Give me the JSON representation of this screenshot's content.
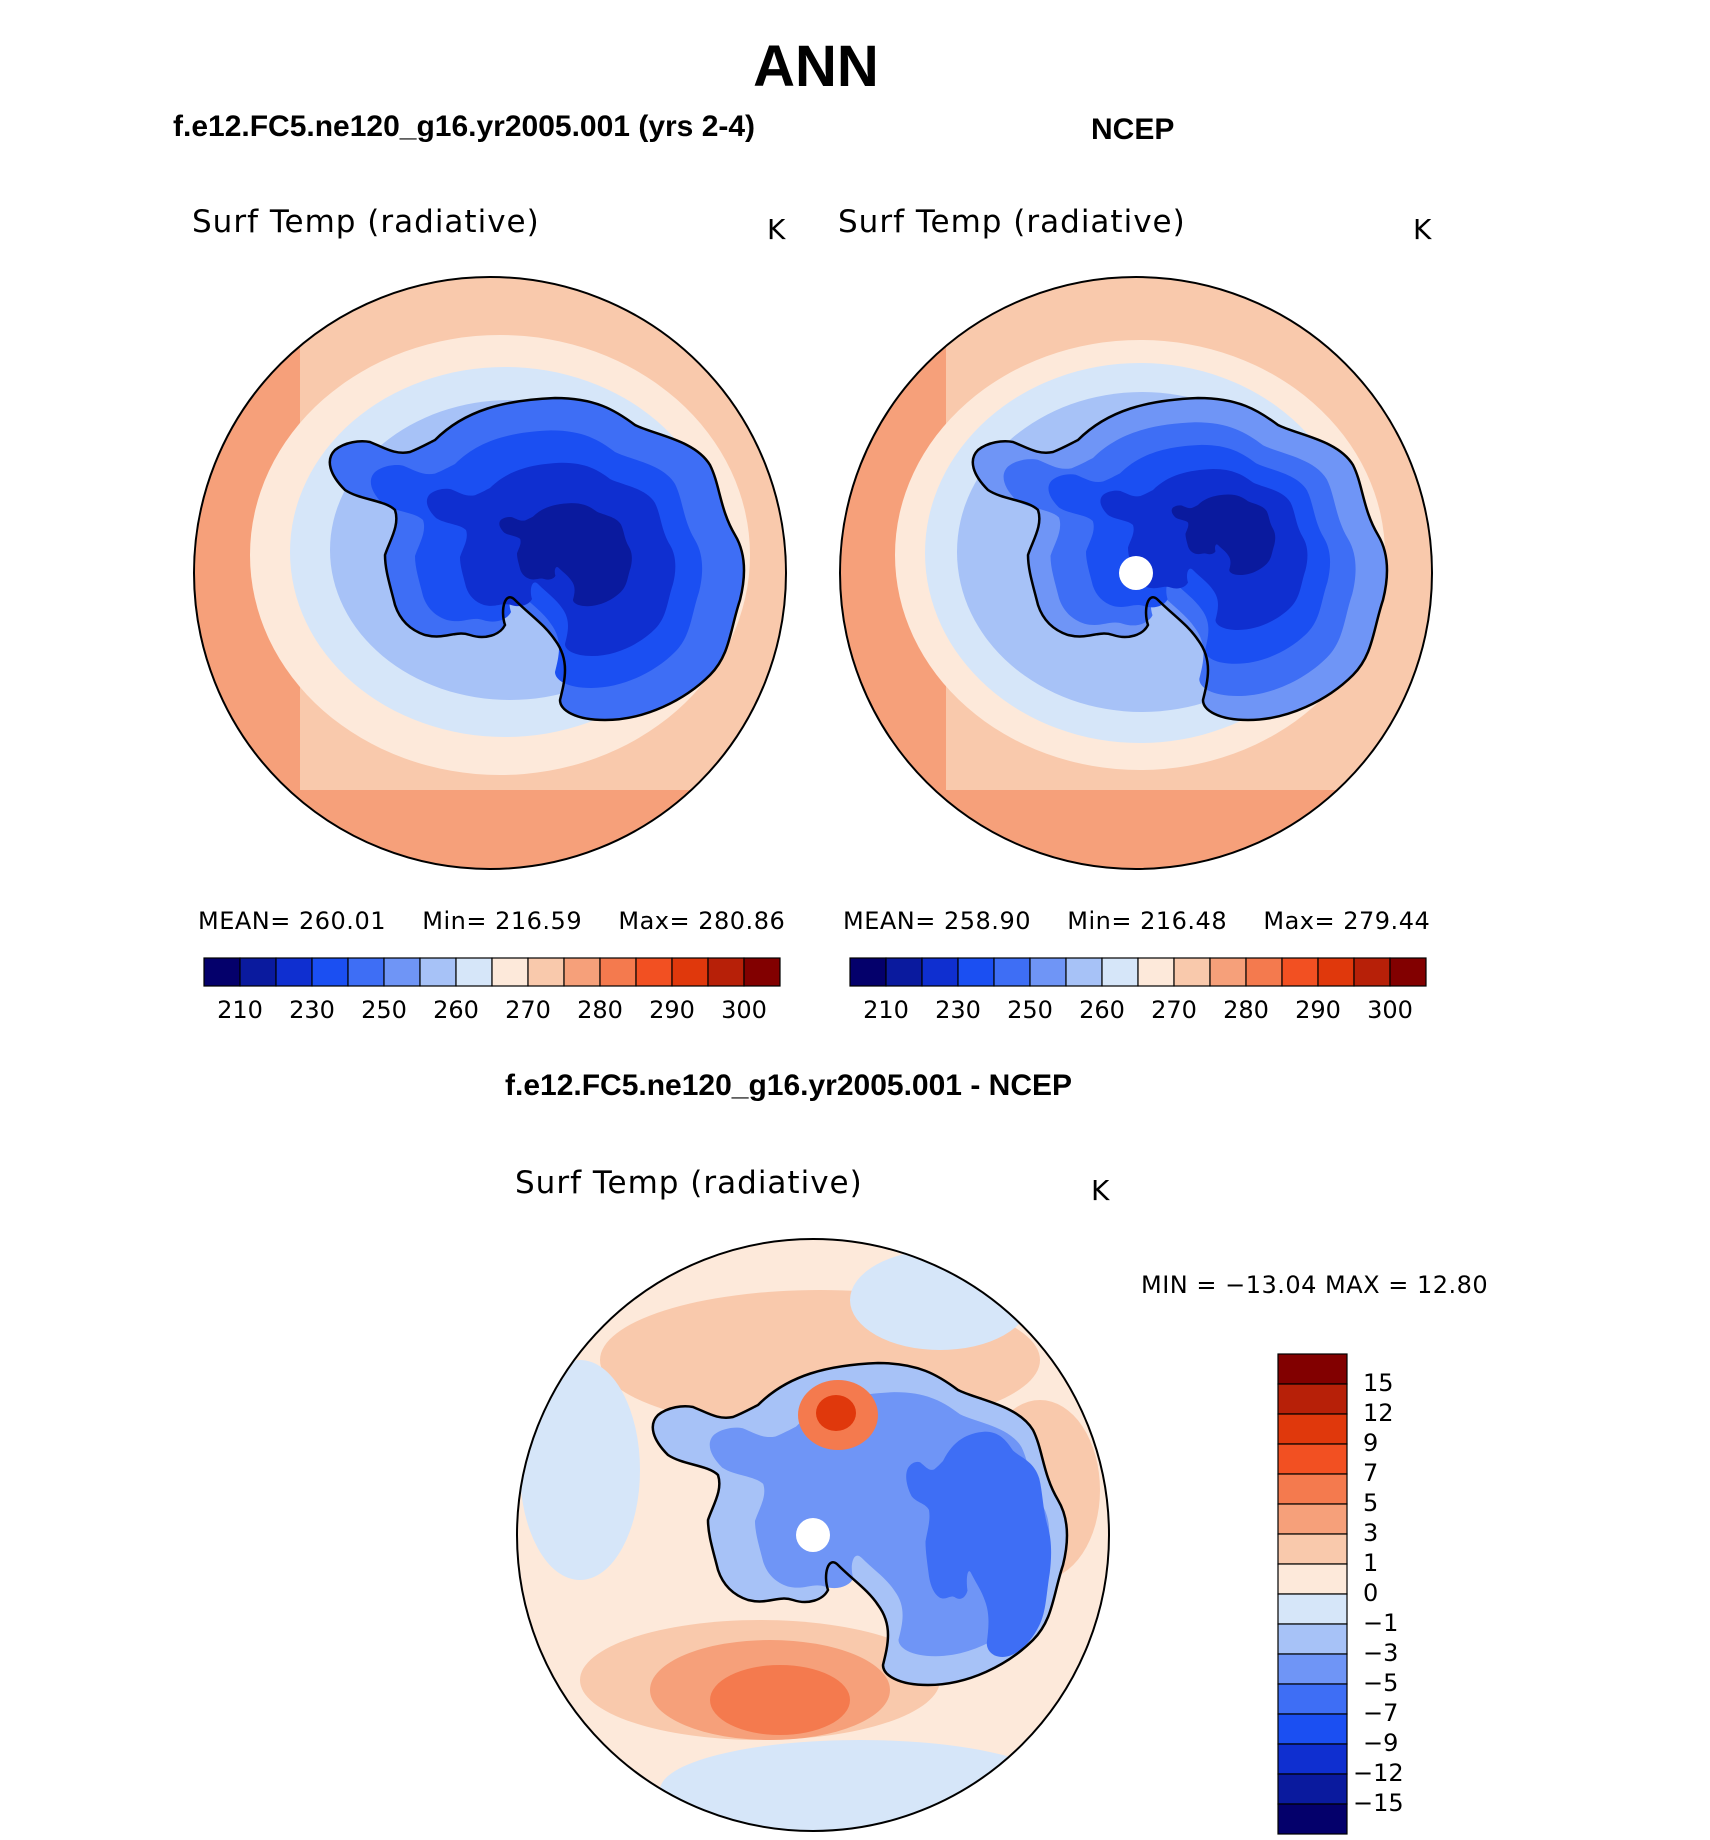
{
  "title": "ANN",
  "panels": [
    {
      "case": "f.e12.FC5.ne120_g16.yr2005.001 (yrs 2-4)",
      "variable": "Surf Temp (radiative)",
      "units": "K",
      "stats": {
        "mean_label": "MEAN=",
        "mean": "260.01",
        "min_label": "Min=",
        "min": "216.59",
        "max_label": "Max=",
        "max": "280.86"
      }
    },
    {
      "case": "NCEP",
      "variable": "Surf Temp (radiative)",
      "units": "K",
      "stats": {
        "mean_label": "MEAN=",
        "mean": "258.90",
        "min_label": "Min=",
        "min": "216.48",
        "max_label": "Max=",
        "max": "279.44"
      }
    }
  ],
  "abs_colorbar": {
    "colors": [
      "#04006b",
      "#0a1a9e",
      "#0f2fd0",
      "#1b4ff2",
      "#3e6ef5",
      "#6f95f6",
      "#a7c2f7",
      "#d6e6f9",
      "#fde9da",
      "#f9c9ac",
      "#f6a07a",
      "#f47a4e",
      "#f25022",
      "#e0380c",
      "#b72008",
      "#820000"
    ],
    "ticks": [
      "210",
      "230",
      "250",
      "260",
      "270",
      "280",
      "290",
      "300"
    ]
  },
  "diff_panel": {
    "case": "f.e12.FC5.ne120_g16.yr2005.001 - NCEP",
    "variable": "Surf Temp (radiative)",
    "units": "K",
    "stats": "MIN = −13.04 MAX =   12.80"
  },
  "diff_colorbar": {
    "colors": [
      "#820000",
      "#b72008",
      "#e0380c",
      "#f25022",
      "#f47a4e",
      "#f6a07a",
      "#f9c9ac",
      "#fde9da",
      "#d6e6f9",
      "#a7c2f7",
      "#6f95f6",
      "#3e6ef5",
      "#1b4ff2",
      "#0f2fd0",
      "#0a1a9e",
      "#04006b"
    ],
    "ticks": [
      "15",
      "12",
      "9",
      "7",
      "5",
      "3",
      "1",
      "0",
      "−1",
      "−3",
      "−5",
      "−7",
      "−9",
      "−12",
      "−15"
    ]
  }
}
